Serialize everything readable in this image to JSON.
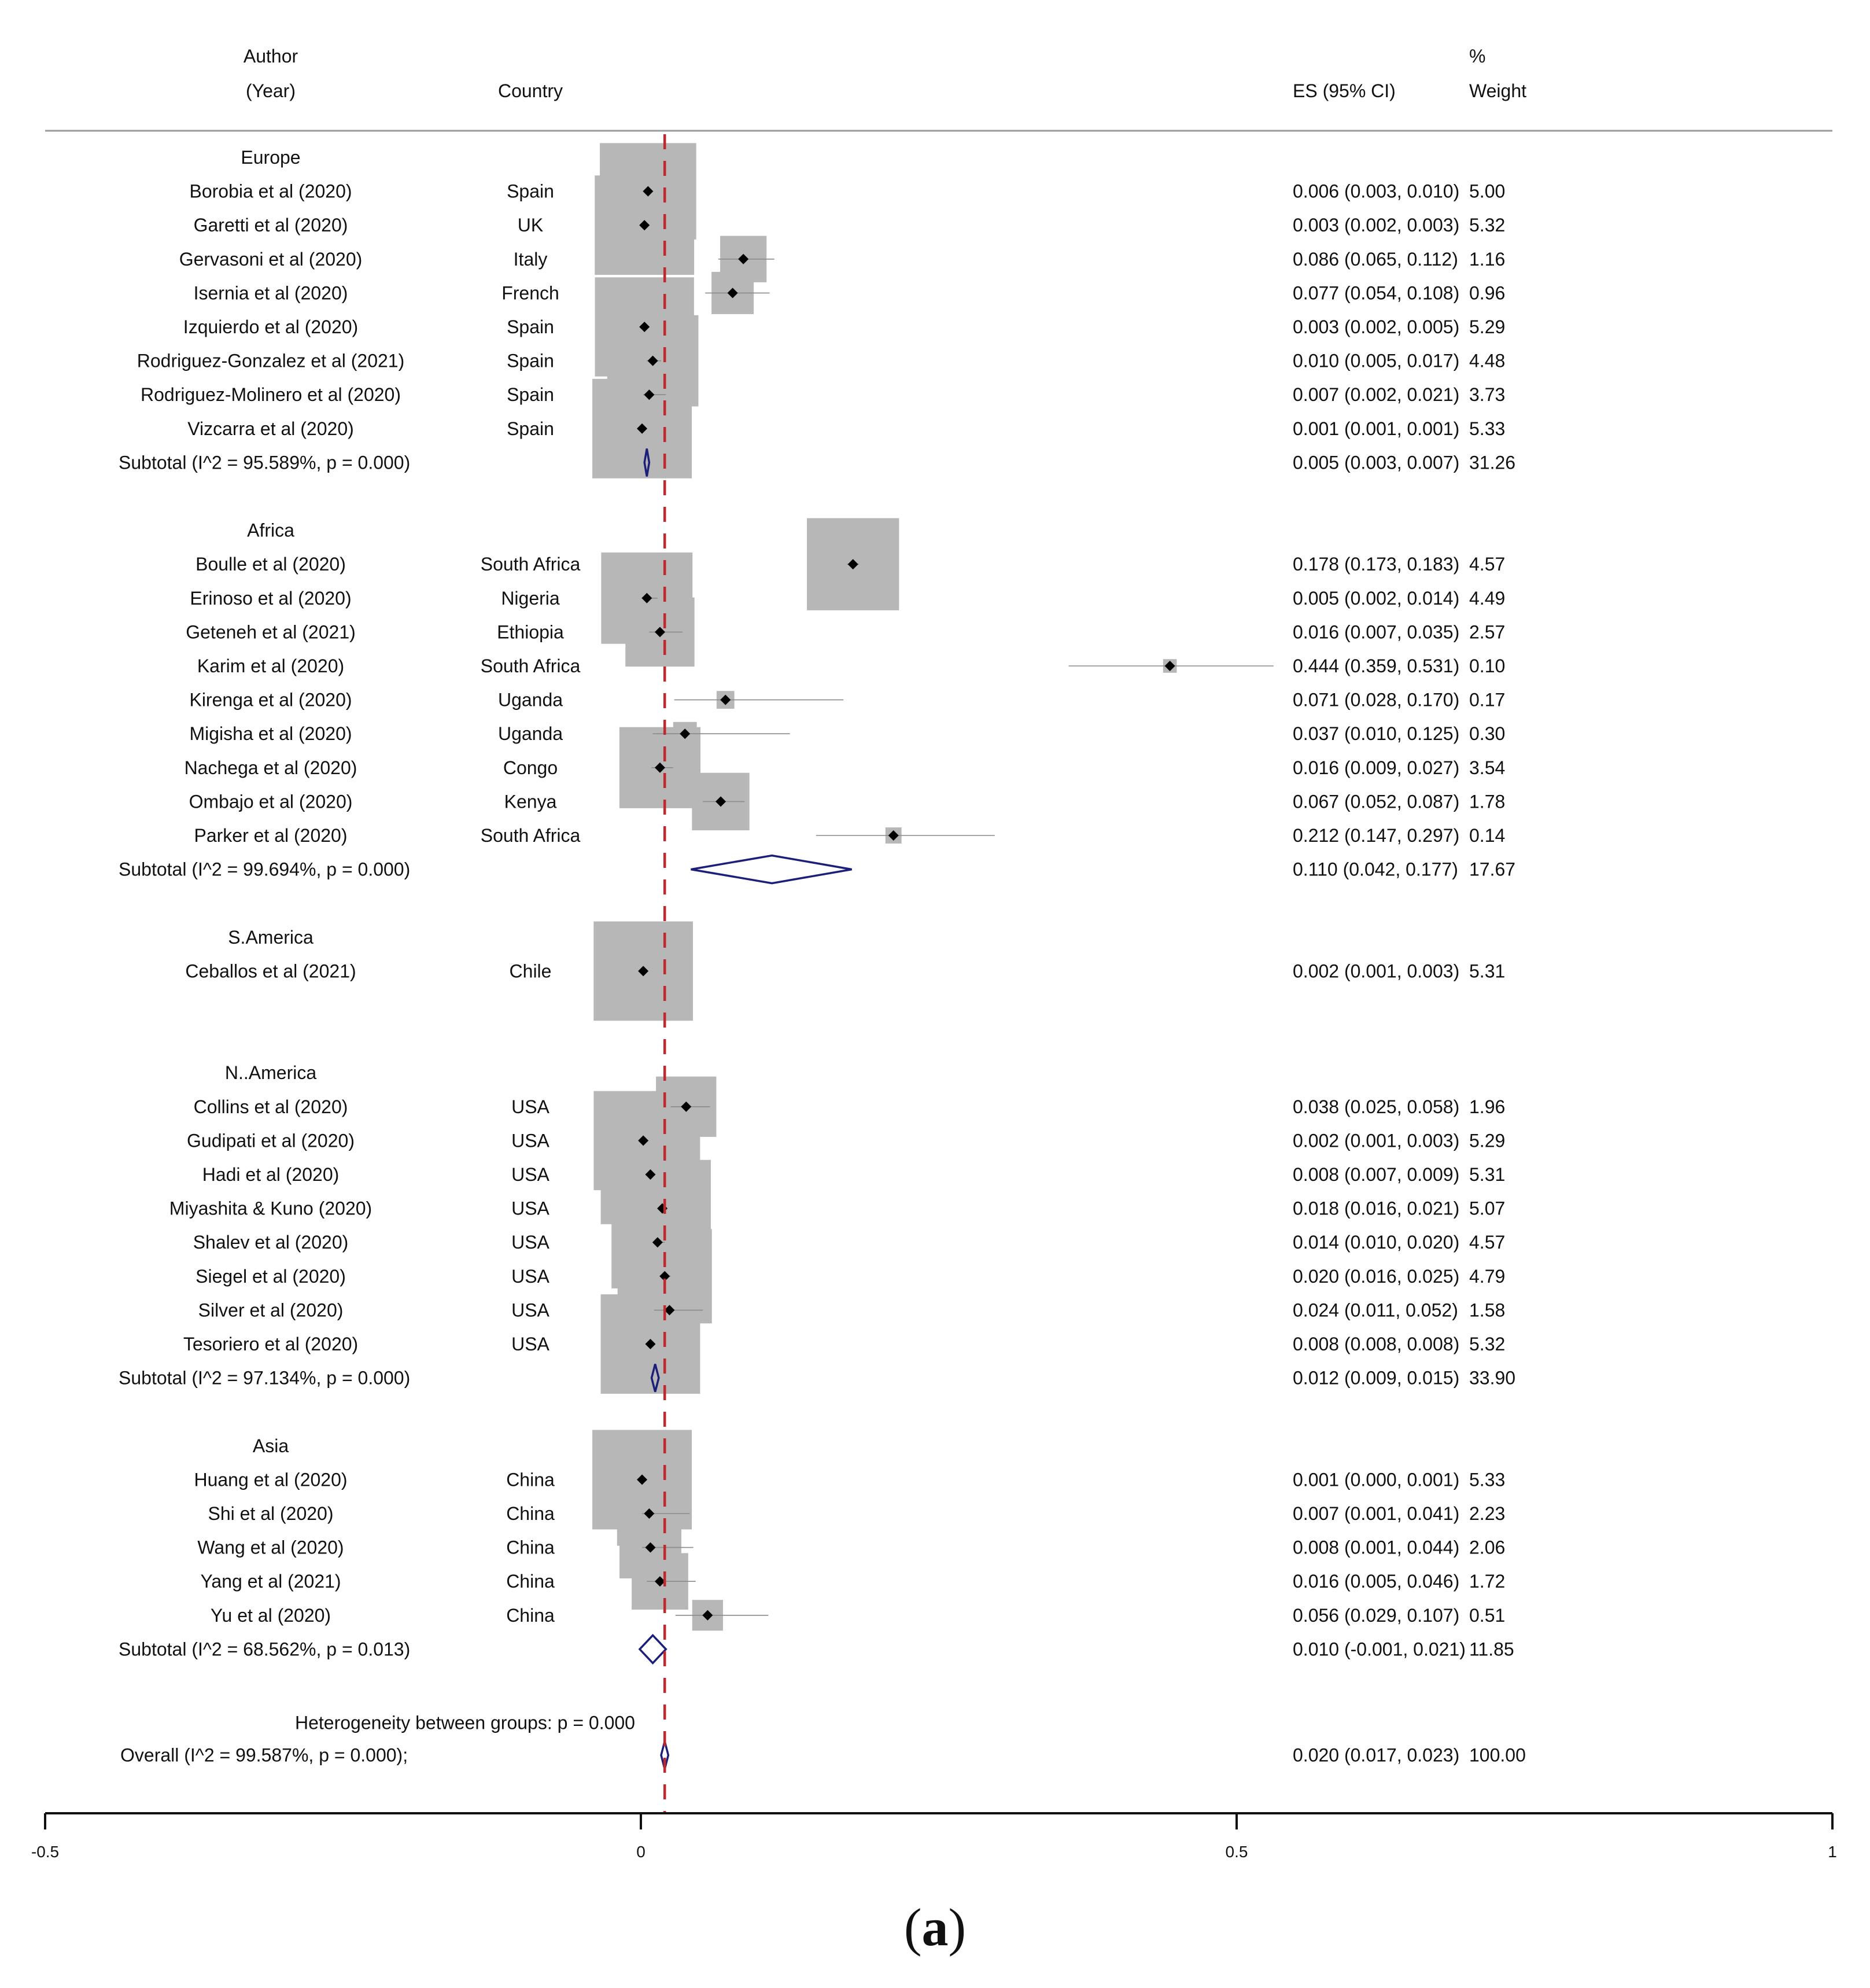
{
  "chart_data": {
    "type": "forest",
    "headers": {
      "author_line1": "Author",
      "author_line2": "(Year)",
      "country": "Country",
      "es": "ES (95% CI)",
      "weight_line1": "%",
      "weight_line2": "Weight"
    },
    "xlim": [
      -0.5,
      1
    ],
    "ticks": [
      {
        "value": -0.5,
        "label": "-0.5"
      },
      {
        "value": 0,
        "label": "0"
      },
      {
        "value": 0.5,
        "label": "0.5"
      },
      {
        "value": 1,
        "label": "1"
      }
    ],
    "reference_line": 0.02,
    "reference_color": "#c0282e",
    "box_color": "#b7b7b7",
    "diamond_color": "#1c1f7a",
    "groups": [
      {
        "name": "Europe",
        "studies": [
          {
            "author": "Borobia et al (2020)",
            "country": "Spain",
            "es": 0.006,
            "lo": 0.003,
            "hi": 0.01,
            "es_text": "0.006 (0.003, 0.010)",
            "weight": 5.0,
            "weight_text": "5.00"
          },
          {
            "author": "Garetti et al (2020)",
            "country": "UK",
            "es": 0.003,
            "lo": 0.002,
            "hi": 0.003,
            "es_text": "0.003 (0.002, 0.003)",
            "weight": 5.32,
            "weight_text": "5.32"
          },
          {
            "author": "Gervasoni et al (2020)",
            "country": "Italy",
            "es": 0.086,
            "lo": 0.065,
            "hi": 0.112,
            "es_text": "0.086 (0.065, 0.112)",
            "weight": 1.16,
            "weight_text": "1.16"
          },
          {
            "author": "Isernia et al (2020)",
            "country": "French",
            "es": 0.077,
            "lo": 0.054,
            "hi": 0.108,
            "es_text": "0.077 (0.054, 0.108)",
            "weight": 0.96,
            "weight_text": "0.96"
          },
          {
            "author": "Izquierdo et al (2020)",
            "country": "Spain",
            "es": 0.003,
            "lo": 0.002,
            "hi": 0.005,
            "es_text": "0.003 (0.002, 0.005)",
            "weight": 5.29,
            "weight_text": "5.29"
          },
          {
            "author": "Rodriguez-Gonzalez et al (2021)",
            "country": "Spain",
            "es": 0.01,
            "lo": 0.005,
            "hi": 0.017,
            "es_text": "0.010 (0.005, 0.017)",
            "weight": 4.48,
            "weight_text": "4.48"
          },
          {
            "author": "Rodriguez-Molinero et al (2020)",
            "country": "Spain",
            "es": 0.007,
            "lo": 0.002,
            "hi": 0.021,
            "es_text": "0.007 (0.002, 0.021)",
            "weight": 3.73,
            "weight_text": "3.73"
          },
          {
            "author": "Vizcarra et al (2020)",
            "country": "Spain",
            "es": 0.001,
            "lo": 0.001,
            "hi": 0.001,
            "es_text": "0.001 (0.001, 0.001)",
            "weight": 5.33,
            "weight_text": "5.33"
          }
        ],
        "subtotal": {
          "label": "Subtotal  (I^2 = 95.589%, p = 0.000)",
          "es": 0.005,
          "lo": 0.003,
          "hi": 0.007,
          "es_text": "0.005 (0.003, 0.007)",
          "weight_text": "31.26"
        }
      },
      {
        "name": "Africa",
        "studies": [
          {
            "author": "Boulle et al (2020)",
            "country": "South Africa",
            "es": 0.178,
            "lo": 0.173,
            "hi": 0.183,
            "es_text": "0.178 (0.173, 0.183)",
            "weight": 4.57,
            "weight_text": "4.57"
          },
          {
            "author": "Erinoso et al (2020)",
            "country": "Nigeria",
            "es": 0.005,
            "lo": 0.002,
            "hi": 0.014,
            "es_text": "0.005 (0.002, 0.014)",
            "weight": 4.49,
            "weight_text": "4.49"
          },
          {
            "author": "Geteneh et al (2021)",
            "country": "Ethiopia",
            "es": 0.016,
            "lo": 0.007,
            "hi": 0.035,
            "es_text": "0.016 (0.007, 0.035)",
            "weight": 2.57,
            "weight_text": "2.57"
          },
          {
            "author": "Karim et al (2020)",
            "country": "South Africa",
            "es": 0.444,
            "lo": 0.359,
            "hi": 0.531,
            "es_text": "0.444 (0.359, 0.531)",
            "weight": 0.1,
            "weight_text": "0.10"
          },
          {
            "author": "Kirenga et al (2020)",
            "country": "Uganda",
            "es": 0.071,
            "lo": 0.028,
            "hi": 0.17,
            "es_text": "0.071 (0.028, 0.170)",
            "weight": 0.17,
            "weight_text": "0.17"
          },
          {
            "author": "Migisha et al (2020)",
            "country": "Uganda",
            "es": 0.037,
            "lo": 0.01,
            "hi": 0.125,
            "es_text": "0.037 (0.010, 0.125)",
            "weight": 0.3,
            "weight_text": "0.30"
          },
          {
            "author": "Nachega et al (2020)",
            "country": "Congo",
            "es": 0.016,
            "lo": 0.009,
            "hi": 0.027,
            "es_text": "0.016 (0.009, 0.027)",
            "weight": 3.54,
            "weight_text": "3.54"
          },
          {
            "author": "Ombajo et al (2020)",
            "country": "Kenya",
            "es": 0.067,
            "lo": 0.052,
            "hi": 0.087,
            "es_text": "0.067 (0.052, 0.087)",
            "weight": 1.78,
            "weight_text": "1.78"
          },
          {
            "author": "Parker et al  (2020)",
            "country": "South Africa",
            "es": 0.212,
            "lo": 0.147,
            "hi": 0.297,
            "es_text": "0.212 (0.147, 0.297)",
            "weight": 0.14,
            "weight_text": "0.14"
          }
        ],
        "subtotal": {
          "label": "Subtotal  (I^2 = 99.694%, p = 0.000)",
          "es": 0.11,
          "lo": 0.042,
          "hi": 0.177,
          "es_text": "0.110 (0.042, 0.177)",
          "weight_text": "17.67"
        }
      },
      {
        "name": "S.America",
        "studies": [
          {
            "author": "Ceballos et al (2021)",
            "country": "Chile",
            "es": 0.002,
            "lo": 0.001,
            "hi": 0.003,
            "es_text": "0.002 (0.001, 0.003)",
            "weight": 5.31,
            "weight_text": "5.31"
          }
        ],
        "subtotal": null
      },
      {
        "name": "N..America",
        "studies": [
          {
            "author": "Collins et al (2020)",
            "country": "USA",
            "es": 0.038,
            "lo": 0.025,
            "hi": 0.058,
            "es_text": "0.038 (0.025, 0.058)",
            "weight": 1.96,
            "weight_text": "1.96"
          },
          {
            "author": "Gudipati et al (2020)",
            "country": "USA",
            "es": 0.002,
            "lo": 0.001,
            "hi": 0.003,
            "es_text": "0.002 (0.001, 0.003)",
            "weight": 5.29,
            "weight_text": "5.29"
          },
          {
            "author": "Hadi  et al (2020)",
            "country": "USA",
            "es": 0.008,
            "lo": 0.007,
            "hi": 0.009,
            "es_text": "0.008 (0.007, 0.009)",
            "weight": 5.31,
            "weight_text": "5.31"
          },
          {
            "author": "Miyashita & Kuno (2020)",
            "country": "USA",
            "es": 0.018,
            "lo": 0.016,
            "hi": 0.021,
            "es_text": "0.018 (0.016, 0.021)",
            "weight": 5.07,
            "weight_text": "5.07"
          },
          {
            "author": "Shalev et al (2020)",
            "country": "USA",
            "es": 0.014,
            "lo": 0.01,
            "hi": 0.02,
            "es_text": "0.014 (0.010, 0.020)",
            "weight": 4.57,
            "weight_text": "4.57"
          },
          {
            "author": "Siegel et al (2020)",
            "country": "USA",
            "es": 0.02,
            "lo": 0.016,
            "hi": 0.025,
            "es_text": "0.020 (0.016, 0.025)",
            "weight": 4.79,
            "weight_text": "4.79"
          },
          {
            "author": "Silver et al (2020)",
            "country": "USA",
            "es": 0.024,
            "lo": 0.011,
            "hi": 0.052,
            "es_text": "0.024 (0.011, 0.052)",
            "weight": 1.58,
            "weight_text": "1.58"
          },
          {
            "author": "Tesoriero et al (2020)",
            "country": "USA",
            "es": 0.008,
            "lo": 0.008,
            "hi": 0.008,
            "es_text": "0.008 (0.008, 0.008)",
            "weight": 5.32,
            "weight_text": "5.32"
          }
        ],
        "subtotal": {
          "label": "Subtotal  (I^2 = 97.134%, p = 0.000)",
          "es": 0.012,
          "lo": 0.009,
          "hi": 0.015,
          "es_text": "0.012 (0.009, 0.015)",
          "weight_text": "33.90"
        }
      },
      {
        "name": "Asia",
        "studies": [
          {
            "author": "Huang et al (2020)",
            "country": "China",
            "es": 0.001,
            "lo": 0.0,
            "hi": 0.001,
            "es_text": "0.001 (0.000, 0.001)",
            "weight": 5.33,
            "weight_text": "5.33"
          },
          {
            "author": "Shi et al (2020)",
            "country": "China",
            "es": 0.007,
            "lo": 0.001,
            "hi": 0.041,
            "es_text": "0.007 (0.001, 0.041)",
            "weight": 2.23,
            "weight_text": "2.23"
          },
          {
            "author": "Wang et al (2020)",
            "country": "China",
            "es": 0.008,
            "lo": 0.001,
            "hi": 0.044,
            "es_text": "0.008 (0.001, 0.044)",
            "weight": 2.06,
            "weight_text": "2.06"
          },
          {
            "author": "Yang et al  (2021)",
            "country": "China",
            "es": 0.016,
            "lo": 0.005,
            "hi": 0.046,
            "es_text": "0.016 (0.005, 0.046)",
            "weight": 1.72,
            "weight_text": "1.72"
          },
          {
            "author": "Yu et al (2020)",
            "country": "China",
            "es": 0.056,
            "lo": 0.029,
            "hi": 0.107,
            "es_text": "0.056 (0.029, 0.107)",
            "weight": 0.51,
            "weight_text": "0.51"
          }
        ],
        "subtotal": {
          "label": "Subtotal  (I^2 = 68.562%, p = 0.013)",
          "es": 0.01,
          "lo": -0.001,
          "hi": 0.021,
          "es_text": "0.010 (-0.001, 0.021)",
          "weight_text": "11.85"
        }
      }
    ],
    "heterogeneity": "Heterogeneity between groups: p = 0.000",
    "overall": {
      "label": "Overall  (I^2 = 99.587%, p = 0.000);",
      "es": 0.02,
      "lo": 0.017,
      "hi": 0.023,
      "es_text": "0.020 (0.017, 0.023)",
      "weight_text": "100.00"
    }
  },
  "caption": {
    "open": "(",
    "letter": "a",
    "close": ")"
  }
}
